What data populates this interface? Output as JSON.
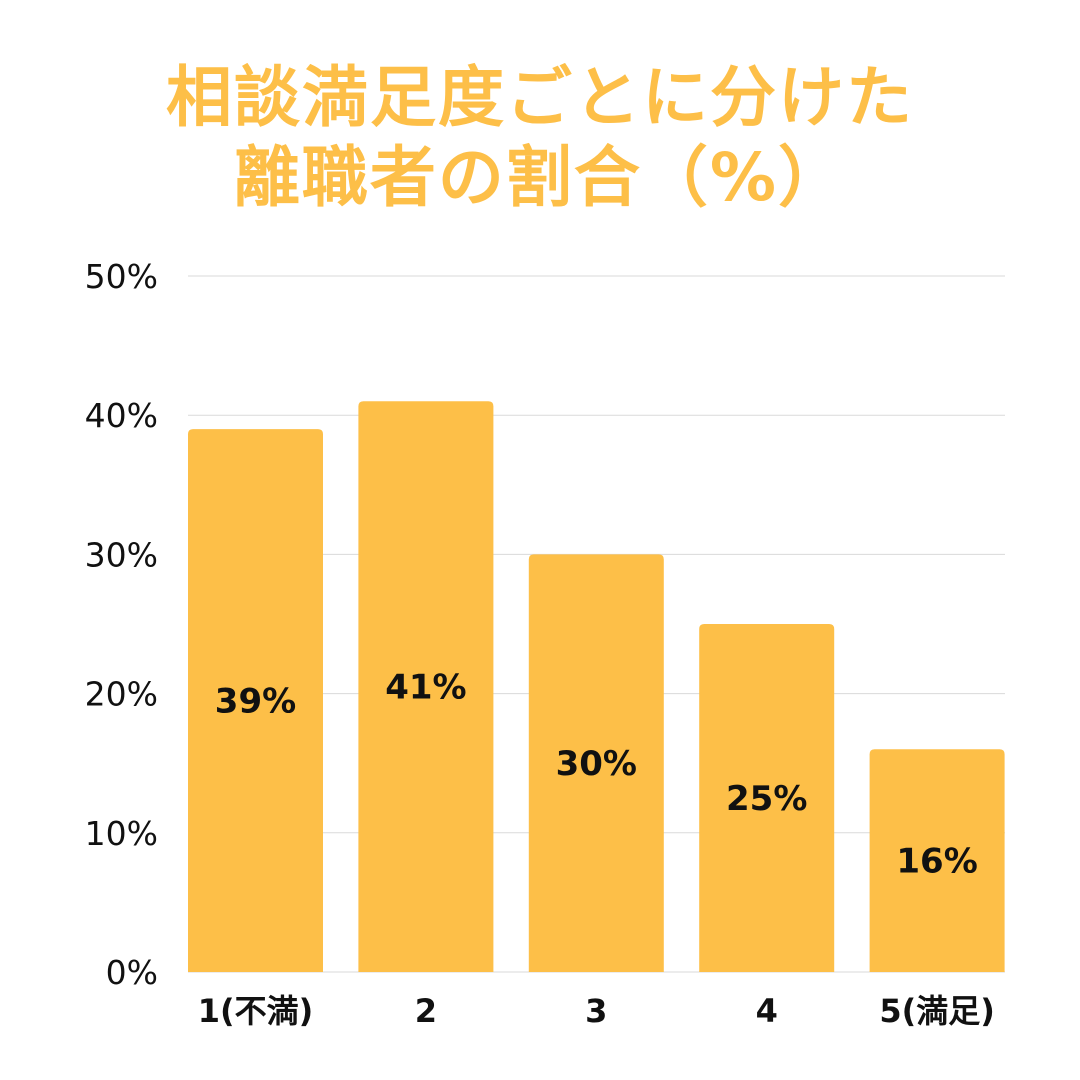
{
  "title": {
    "line1": "相談満足度ごとに分けた",
    "line2": "離職者の割合（%）"
  },
  "colors": {
    "title": "#FDBF48",
    "bar": "#FDBF48",
    "grid": "#DADADA",
    "text": "#111111"
  },
  "chart_data": {
    "type": "bar",
    "title": "相談満足度ごとに分けた離職者の割合（%）",
    "categories": [
      "1(不満)",
      "2",
      "3",
      "4",
      "5(満足)"
    ],
    "values": [
      39,
      41,
      30,
      25,
      16
    ],
    "data_labels": [
      "39%",
      "41%",
      "30%",
      "25%",
      "16%"
    ],
    "y_ticks": [
      0,
      10,
      20,
      30,
      40,
      50
    ],
    "y_tick_labels": [
      "0%",
      "10%",
      "20%",
      "30%",
      "40%",
      "50%"
    ],
    "ylim": [
      0,
      50
    ],
    "xlabel": "",
    "ylabel": "",
    "grid": true,
    "legend": "none"
  }
}
